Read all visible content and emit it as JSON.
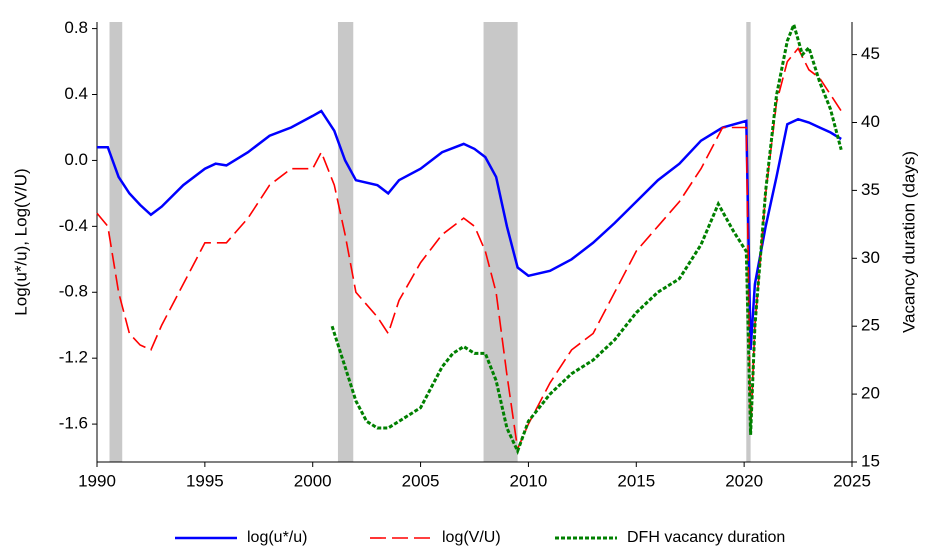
{
  "chart_data": {
    "type": "line",
    "y_label": "Log(u*/u), Log(V/U)",
    "y2_label": "Vacancy duration (days)",
    "xlim": [
      1990,
      2025
    ],
    "xticks": [
      1990,
      1995,
      2000,
      2005,
      2010,
      2015,
      2020,
      2025
    ],
    "ylim": [
      -1.83,
      0.84
    ],
    "yticks": [
      0.8,
      0.4,
      {
        "value": 0,
        "label": "0.0"
      },
      -0.4,
      -0.8,
      -1.2,
      -1.6
    ],
    "y2lim": [
      15,
      47.4
    ],
    "y2ticks": [
      45,
      40,
      35,
      30,
      25,
      20,
      15
    ],
    "shaded_periods": [
      [
        1990.58,
        1991.17
      ],
      [
        2001.17,
        2001.88
      ],
      [
        2007.92,
        2009.5
      ],
      [
        2020.1,
        2020.3
      ]
    ],
    "shade_color": "#c8c8c8",
    "legend": "bottom",
    "series": [
      {
        "name": "log(u*/u)",
        "color": "#0000ff",
        "style": "solid",
        "x": [
          1990,
          1990.5,
          1991,
          1991.5,
          1992,
          1992.5,
          1993,
          1994,
          1995,
          1995.5,
          1996,
          1997,
          1998,
          1999,
          2000,
          2000.4,
          2001,
          2001.5,
          2002,
          2003,
          2003.5,
          2004,
          2005,
          2006,
          2007,
          2007.5,
          2008,
          2008.5,
          2009,
          2009.5,
          2010,
          2011,
          2012,
          2013,
          2014,
          2015,
          2016,
          2017,
          2018,
          2019,
          2020.1,
          2020.3,
          2020.5,
          2021,
          2021.5,
          2022,
          2022.5,
          2023,
          2023.5,
          2024,
          2024.5
        ],
        "values": [
          0.08,
          0.08,
          -0.1,
          -0.2,
          -0.27,
          -0.33,
          -0.28,
          -0.15,
          -0.05,
          -0.02,
          -0.03,
          0.05,
          0.15,
          0.2,
          0.27,
          0.3,
          0.18,
          0.0,
          -0.12,
          -0.15,
          -0.2,
          -0.12,
          -0.05,
          0.05,
          0.1,
          0.07,
          0.02,
          -0.1,
          -0.4,
          -0.65,
          -0.7,
          -0.67,
          -0.6,
          -0.5,
          -0.38,
          -0.25,
          -0.12,
          -0.02,
          0.12,
          0.2,
          0.24,
          -1.15,
          -0.75,
          -0.4,
          -0.1,
          0.22,
          0.25,
          0.23,
          0.2,
          0.17,
          0.13
        ]
      },
      {
        "name": "log(V/U)",
        "color": "#ff0000",
        "style": "dashed",
        "x": [
          1990,
          1990.5,
          1991,
          1991.5,
          1992,
          1992.5,
          1993,
          1994,
          1995,
          1996,
          1997,
          1998,
          1999,
          2000,
          2000.4,
          2001,
          2001.5,
          2002,
          2003,
          2003.5,
          2004,
          2005,
          2006,
          2007,
          2007.5,
          2008,
          2008.5,
          2009,
          2009.5,
          2010,
          2011,
          2012,
          2013,
          2014,
          2015,
          2016,
          2017,
          2018,
          2019,
          2020.1,
          2020.3,
          2020.5,
          2021,
          2021.5,
          2022,
          2022.5,
          2023,
          2023.5,
          2024,
          2024.5
        ],
        "values": [
          -0.32,
          -0.4,
          -0.8,
          -1.05,
          -1.12,
          -1.15,
          -1.0,
          -0.75,
          -0.5,
          -0.5,
          -0.35,
          -0.15,
          -0.05,
          -0.05,
          0.05,
          -0.15,
          -0.45,
          -0.8,
          -0.95,
          -1.05,
          -0.85,
          -0.62,
          -0.45,
          -0.35,
          -0.4,
          -0.55,
          -0.8,
          -1.3,
          -1.75,
          -1.6,
          -1.35,
          -1.15,
          -1.05,
          -0.8,
          -0.55,
          -0.4,
          -0.25,
          -0.05,
          0.2,
          0.2,
          -1.65,
          -1.0,
          -0.2,
          0.35,
          0.6,
          0.68,
          0.55,
          0.5,
          0.4,
          0.3
        ]
      },
      {
        "name": "DFH vacancy duration",
        "color": "#008000",
        "style": "dotted",
        "axis": "y2",
        "x": [
          2000.9,
          2001.5,
          2002,
          2002.5,
          2003,
          2003.5,
          2004,
          2005,
          2006,
          2006.5,
          2007,
          2007.5,
          2008,
          2008.5,
          2009,
          2009.5,
          2010,
          2011,
          2012,
          2013,
          2014,
          2015,
          2016,
          2017,
          2018,
          2018.8,
          2019.5,
          2020.1,
          2020.3,
          2020.5,
          2021,
          2021.5,
          2022,
          2022.3,
          2022.7,
          2023,
          2023.5,
          2024,
          2024.5
        ],
        "values": [
          25,
          22,
          19.5,
          18,
          17.5,
          17.5,
          18,
          19,
          22,
          23,
          23.5,
          23,
          23,
          21,
          17.5,
          15.8,
          18,
          20,
          21.5,
          22.5,
          24,
          26,
          27.5,
          28.5,
          31,
          34,
          32,
          30.5,
          17,
          25,
          35,
          42,
          46,
          47.2,
          45,
          45.5,
          43,
          41,
          38
        ]
      }
    ]
  }
}
